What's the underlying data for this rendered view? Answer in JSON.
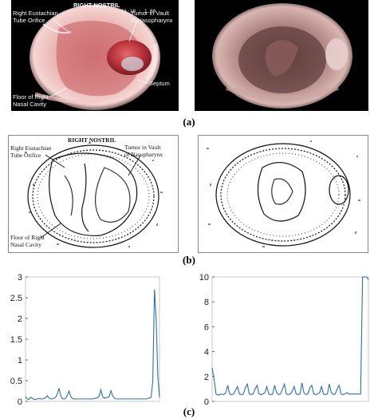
{
  "figure": {
    "panel_a": {
      "caption": "(a)",
      "left_image": {
        "title": "RIGHT NOSTRIL",
        "stamp": "11:18 : 1.00",
        "labels": {
          "eustachian": [
            "Right Eustachian",
            "Tube Orifice"
          ],
          "tumor": [
            "Tumor in Vault",
            "of Nasopharynx"
          ],
          "septum": "Septum",
          "floor": [
            "Floor of Right",
            "Nasal Cavity"
          ]
        }
      }
    },
    "panel_b": {
      "caption": "(b)",
      "left_image": {
        "title": "RIGHT NOSTRIL",
        "labels": {
          "eustachian": [
            "Right Eustachian",
            "Tube Orifice"
          ],
          "tumor": [
            "Tumor in Vault",
            "of Nasopharynx"
          ],
          "floor": [
            "Floor of Right",
            "Nasal Cavity"
          ]
        }
      }
    },
    "panel_c": {
      "caption": "(c)"
    }
  },
  "colors": {
    "line": "#2f6fa6",
    "endo_bg": "#000000"
  },
  "chart_data": [
    {
      "type": "line",
      "title": "",
      "xlabel": "",
      "ylabel": "",
      "ylim": [
        0,
        3
      ],
      "yticks": [
        "0",
        "0.5",
        "1",
        "1.5",
        "2",
        "2.5",
        "3"
      ],
      "x": [
        0,
        1,
        2,
        3,
        4,
        5,
        6,
        7,
        8,
        9,
        10,
        11,
        12,
        13,
        14,
        15,
        16,
        17,
        18,
        19,
        20,
        21,
        22,
        23,
        24,
        25,
        26,
        27,
        28,
        29,
        30,
        31,
        32,
        33,
        34,
        35,
        36,
        37,
        38,
        39,
        40,
        41,
        42,
        43,
        44,
        45,
        46,
        47,
        48,
        49,
        50,
        51,
        52,
        53,
        54,
        55,
        56,
        57,
        58,
        59,
        60,
        61,
        62,
        63,
        64,
        65,
        66,
        67,
        68,
        69,
        70,
        71,
        72,
        73,
        74,
        75,
        76,
        77,
        78,
        79,
        80
      ],
      "series": [
        {
          "values": [
            0.12,
            0.06,
            0.05,
            0.1,
            0.08,
            0.05,
            0.05,
            0.06,
            0.07,
            0.06,
            0.06,
            0.07,
            0.09,
            0.14,
            0.08,
            0.06,
            0.06,
            0.08,
            0.1,
            0.18,
            0.32,
            0.14,
            0.07,
            0.06,
            0.08,
            0.15,
            0.25,
            0.12,
            0.07,
            0.06,
            0.06,
            0.06,
            0.06,
            0.06,
            0.06,
            0.06,
            0.06,
            0.06,
            0.06,
            0.06,
            0.06,
            0.07,
            0.08,
            0.09,
            0.13,
            0.28,
            0.12,
            0.08,
            0.09,
            0.1,
            0.12,
            0.26,
            0.14,
            0.08,
            0.06,
            0.06,
            0.06,
            0.06,
            0.06,
            0.06,
            0.06,
            0.06,
            0.06,
            0.06,
            0.06,
            0.06,
            0.06,
            0.06,
            0.06,
            0.06,
            0.06,
            0.06,
            0.06,
            0.07,
            0.08,
            0.1,
            0.5,
            2.7,
            2.0,
            0.6,
            0.1
          ]
        }
      ]
    },
    {
      "type": "line",
      "title": "",
      "xlabel": "",
      "ylabel": "",
      "ylim": [
        0,
        10
      ],
      "yticks": [
        "0",
        "2",
        "4",
        "6",
        "8",
        "10"
      ],
      "x": [
        0,
        1,
        2,
        3,
        4,
        5,
        6,
        7,
        8,
        9,
        10,
        11,
        12,
        13,
        14,
        15,
        16,
        17,
        18,
        19,
        20,
        21,
        22,
        23,
        24,
        25,
        26,
        27,
        28,
        29,
        30,
        31,
        32,
        33,
        34,
        35,
        36,
        37,
        38,
        39,
        40,
        41,
        42,
        43,
        44,
        45,
        46,
        47,
        48,
        49,
        50,
        51,
        52,
        53,
        54,
        55,
        56,
        57,
        58,
        59,
        60,
        61,
        62,
        63,
        64,
        65,
        66,
        67,
        68,
        69,
        70,
        71,
        72,
        73,
        74,
        75,
        76,
        77,
        78,
        79,
        80
      ],
      "series": [
        {
          "values": [
            2.7,
            1.8,
            0.6,
            0.5,
            0.55,
            0.6,
            0.55,
            0.7,
            1.3,
            0.6,
            0.55,
            0.6,
            0.9,
            1.2,
            0.6,
            0.55,
            0.6,
            1.1,
            1.4,
            0.6,
            0.55,
            0.6,
            1.0,
            1.3,
            0.6,
            0.55,
            0.6,
            0.7,
            1.2,
            0.6,
            0.55,
            0.6,
            1.3,
            0.7,
            0.55,
            0.6,
            1.0,
            1.4,
            0.6,
            0.55,
            0.6,
            0.8,
            1.2,
            0.6,
            0.55,
            0.6,
            1.5,
            0.7,
            0.55,
            0.6,
            1.1,
            1.3,
            0.6,
            0.55,
            0.6,
            0.7,
            1.2,
            0.6,
            0.55,
            0.6,
            1.4,
            0.7,
            0.55,
            0.6,
            1.0,
            1.3,
            0.6,
            0.55,
            0.6,
            0.7,
            0.6,
            0.6,
            0.6,
            0.6,
            0.6,
            0.6,
            0.6,
            10,
            10,
            10,
            9.8
          ]
        }
      ]
    }
  ]
}
